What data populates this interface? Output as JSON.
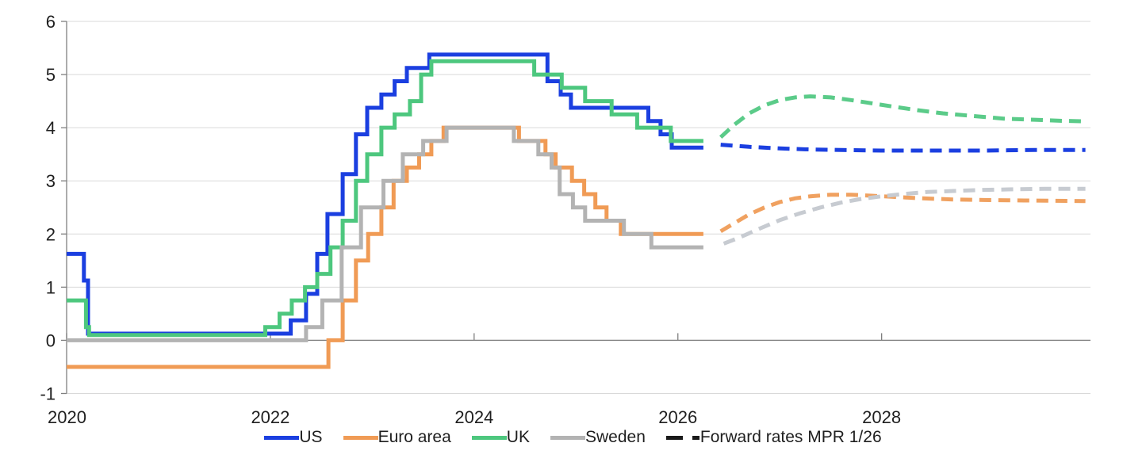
{
  "chart_data": {
    "type": "line",
    "title": "",
    "xlabel": "",
    "ylabel": "",
    "xlim": [
      2020,
      2030.05
    ],
    "ylim": [
      -1,
      6
    ],
    "x_ticks": [
      2020,
      2022,
      2024,
      2026,
      2028
    ],
    "x_tick_labels": [
      "2020",
      "2022",
      "2024",
      "2026",
      "2028"
    ],
    "y_ticks": [
      -1,
      0,
      1,
      2,
      3,
      4,
      5,
      6
    ],
    "y_tick_labels": [
      "-1",
      "0",
      "1",
      "2",
      "3",
      "4",
      "5",
      "6"
    ],
    "grid": true,
    "grid_color": "#D9D9D9",
    "axis_color": "#7F7F7F",
    "text_color": "#1F1F1F",
    "legend_position": "bottom",
    "series": [
      {
        "name": "US",
        "shape": "step",
        "line": "solid",
        "color": "#1B3FE0",
        "x_end": 2026.25,
        "points": [
          [
            2020.0,
            1.625
          ],
          [
            2020.17,
            1.125
          ],
          [
            2020.21,
            0.125
          ],
          [
            2022.2,
            0.375
          ],
          [
            2022.35,
            0.875
          ],
          [
            2022.46,
            1.625
          ],
          [
            2022.56,
            2.375
          ],
          [
            2022.71,
            3.125
          ],
          [
            2022.84,
            3.875
          ],
          [
            2022.95,
            4.375
          ],
          [
            2023.09,
            4.625
          ],
          [
            2023.22,
            4.875
          ],
          [
            2023.34,
            5.125
          ],
          [
            2023.56,
            5.375
          ],
          [
            2024.72,
            4.875
          ],
          [
            2024.85,
            4.625
          ],
          [
            2024.95,
            4.375
          ],
          [
            2025.71,
            4.125
          ],
          [
            2025.83,
            3.875
          ],
          [
            2025.94,
            3.625
          ]
        ]
      },
      {
        "name": "Euro area",
        "shape": "step",
        "line": "solid",
        "color": "#F09B55",
        "x_end": 2026.25,
        "points": [
          [
            2020.0,
            -0.5
          ],
          [
            2022.57,
            0.0
          ],
          [
            2022.71,
            0.75
          ],
          [
            2022.84,
            1.5
          ],
          [
            2022.96,
            2.0
          ],
          [
            2023.09,
            2.5
          ],
          [
            2023.21,
            3.0
          ],
          [
            2023.34,
            3.25
          ],
          [
            2023.46,
            3.5
          ],
          [
            2023.58,
            3.75
          ],
          [
            2023.7,
            4.0
          ],
          [
            2024.44,
            3.75
          ],
          [
            2024.7,
            3.5
          ],
          [
            2024.8,
            3.25
          ],
          [
            2024.96,
            3.0
          ],
          [
            2025.08,
            2.75
          ],
          [
            2025.19,
            2.5
          ],
          [
            2025.3,
            2.25
          ],
          [
            2025.44,
            2.0
          ]
        ]
      },
      {
        "name": "UK",
        "shape": "step",
        "line": "solid",
        "color": "#4DC77E",
        "x_end": 2026.25,
        "points": [
          [
            2020.0,
            0.75
          ],
          [
            2020.19,
            0.25
          ],
          [
            2020.22,
            0.1
          ],
          [
            2021.95,
            0.25
          ],
          [
            2022.09,
            0.5
          ],
          [
            2022.21,
            0.75
          ],
          [
            2022.34,
            1.0
          ],
          [
            2022.46,
            1.25
          ],
          [
            2022.59,
            1.75
          ],
          [
            2022.71,
            2.25
          ],
          [
            2022.84,
            3.0
          ],
          [
            2022.95,
            3.5
          ],
          [
            2023.09,
            4.0
          ],
          [
            2023.22,
            4.25
          ],
          [
            2023.37,
            4.5
          ],
          [
            2023.48,
            5.0
          ],
          [
            2023.58,
            5.25
          ],
          [
            2024.59,
            5.0
          ],
          [
            2024.86,
            4.75
          ],
          [
            2025.09,
            4.5
          ],
          [
            2025.35,
            4.25
          ],
          [
            2025.6,
            4.0
          ],
          [
            2025.93,
            3.75
          ]
        ]
      },
      {
        "name": "Sweden",
        "shape": "step",
        "line": "solid",
        "color": "#B3B3B3",
        "x_end": 2026.25,
        "points": [
          [
            2020.0,
            0.0
          ],
          [
            2022.35,
            0.25
          ],
          [
            2022.51,
            0.75
          ],
          [
            2022.7,
            1.75
          ],
          [
            2022.89,
            2.5
          ],
          [
            2023.11,
            3.0
          ],
          [
            2023.3,
            3.5
          ],
          [
            2023.5,
            3.75
          ],
          [
            2023.73,
            4.0
          ],
          [
            2024.39,
            3.75
          ],
          [
            2024.63,
            3.5
          ],
          [
            2024.76,
            3.25
          ],
          [
            2024.84,
            2.75
          ],
          [
            2024.97,
            2.5
          ],
          [
            2025.09,
            2.25
          ],
          [
            2025.47,
            2.0
          ],
          [
            2025.74,
            1.75
          ]
        ]
      },
      {
        "name": "US forward rates MPR 1/26",
        "shape": "smooth",
        "line": "dashed",
        "color": "#1B3FE0",
        "points": [
          [
            2026.42,
            3.68
          ],
          [
            2026.7,
            3.64
          ],
          [
            2027.0,
            3.61
          ],
          [
            2027.3,
            3.59
          ],
          [
            2027.6,
            3.58
          ],
          [
            2028.0,
            3.57
          ],
          [
            2028.5,
            3.57
          ],
          [
            2029.0,
            3.57
          ],
          [
            2029.5,
            3.58
          ],
          [
            2030.0,
            3.58
          ]
        ]
      },
      {
        "name": "Euro area forward rates MPR 1/26",
        "shape": "smooth",
        "line": "dashed",
        "color": "#F0A160",
        "points": [
          [
            2026.42,
            2.05
          ],
          [
            2026.55,
            2.2
          ],
          [
            2026.7,
            2.37
          ],
          [
            2026.85,
            2.5
          ],
          [
            2027.0,
            2.6
          ],
          [
            2027.15,
            2.67
          ],
          [
            2027.3,
            2.71
          ],
          [
            2027.5,
            2.74
          ],
          [
            2027.7,
            2.74
          ],
          [
            2027.9,
            2.72
          ],
          [
            2028.1,
            2.7
          ],
          [
            2028.4,
            2.67
          ],
          [
            2028.7,
            2.65
          ],
          [
            2029.0,
            2.64
          ],
          [
            2029.4,
            2.63
          ],
          [
            2030.0,
            2.62
          ]
        ]
      },
      {
        "name": "UK forward rates MPR 1/26",
        "shape": "smooth",
        "line": "dashed",
        "color": "#5BCB89",
        "points": [
          [
            2026.42,
            3.82
          ],
          [
            2026.55,
            4.05
          ],
          [
            2026.7,
            4.27
          ],
          [
            2026.85,
            4.42
          ],
          [
            2027.0,
            4.52
          ],
          [
            2027.15,
            4.57
          ],
          [
            2027.3,
            4.59
          ],
          [
            2027.5,
            4.57
          ],
          [
            2027.7,
            4.52
          ],
          [
            2027.9,
            4.46
          ],
          [
            2028.1,
            4.4
          ],
          [
            2028.35,
            4.33
          ],
          [
            2028.6,
            4.27
          ],
          [
            2028.9,
            4.22
          ],
          [
            2029.2,
            4.17
          ],
          [
            2029.5,
            4.15
          ],
          [
            2029.75,
            4.13
          ],
          [
            2030.0,
            4.12
          ]
        ]
      },
      {
        "name": "Sweden forward rates MPR 1/26",
        "shape": "smooth",
        "line": "dashed",
        "color": "#C7CBD1",
        "points": [
          [
            2026.45,
            1.82
          ],
          [
            2026.6,
            1.93
          ],
          [
            2026.8,
            2.1
          ],
          [
            2027.0,
            2.26
          ],
          [
            2027.2,
            2.39
          ],
          [
            2027.4,
            2.5
          ],
          [
            2027.6,
            2.59
          ],
          [
            2027.8,
            2.66
          ],
          [
            2028.0,
            2.71
          ],
          [
            2028.2,
            2.75
          ],
          [
            2028.45,
            2.79
          ],
          [
            2028.7,
            2.81
          ],
          [
            2029.0,
            2.83
          ],
          [
            2029.3,
            2.84
          ],
          [
            2029.6,
            2.85
          ],
          [
            2030.0,
            2.85
          ]
        ]
      }
    ],
    "legend": [
      {
        "label": "US",
        "color": "#1B3FE0",
        "style": "solid"
      },
      {
        "label": "Euro area",
        "color": "#F09B55",
        "style": "solid"
      },
      {
        "label": "UK",
        "color": "#4DC77E",
        "style": "solid"
      },
      {
        "label": "Sweden",
        "color": "#B3B3B3",
        "style": "solid"
      },
      {
        "label": "Forward rates MPR 1/26",
        "color": "#1A1A1A",
        "style": "dashed"
      }
    ]
  }
}
